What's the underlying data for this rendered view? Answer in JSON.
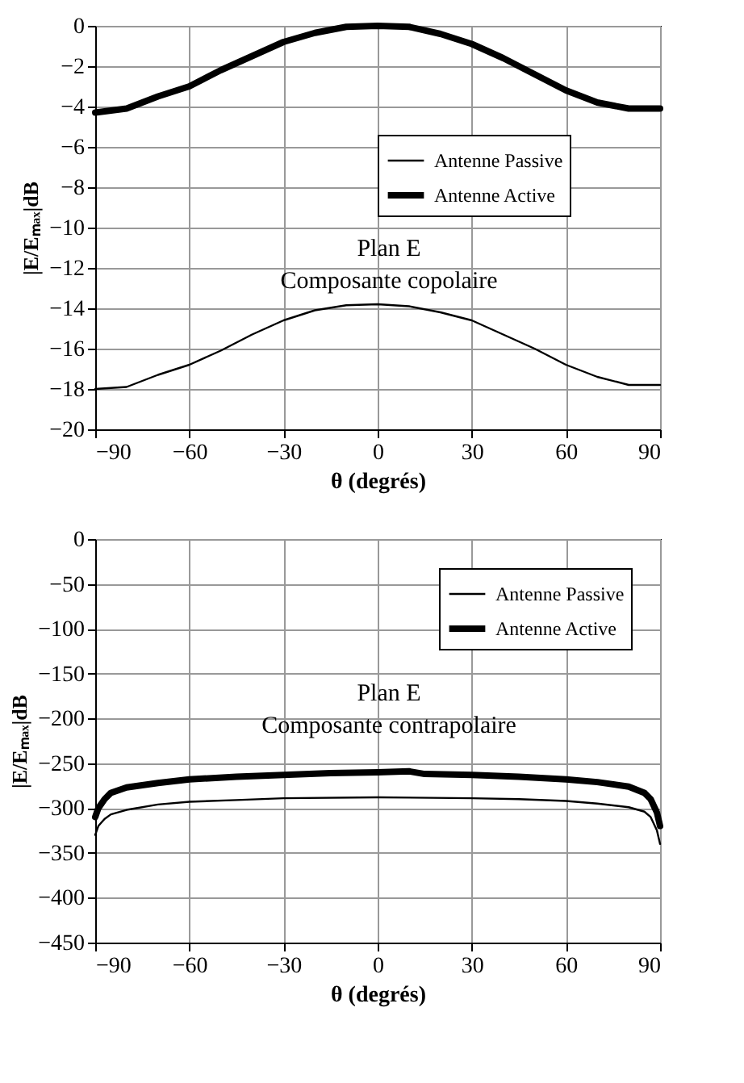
{
  "chart_data": [
    {
      "type": "line",
      "xlabel": "θ (degrés)",
      "ylabel": "|E/Eₘₐₓ|dB",
      "annotations": [
        "Plan E",
        "Composante copolaire"
      ],
      "xlim": [
        -90,
        90
      ],
      "xticks": [
        -90,
        -60,
        -30,
        0,
        30,
        60,
        90
      ],
      "ylim": [
        -20,
        0
      ],
      "yticks": [
        -20,
        -18,
        -16,
        -14,
        -12,
        -10,
        -8,
        -6,
        -4,
        -2,
        0
      ],
      "grid": true,
      "legend": "right",
      "marker": "none",
      "line_style": "solid",
      "x": [
        -90,
        -80,
        -70,
        -60,
        -50,
        -40,
        -30,
        -20,
        -10,
        0,
        10,
        20,
        30,
        40,
        50,
        60,
        70,
        80,
        90
      ],
      "series": [
        {
          "name": "Antenne Passive",
          "color": "#000000",
          "values": [
            -18,
            -17.9,
            -17.3,
            -16.8,
            -16.1,
            -15.3,
            -14.6,
            -14.1,
            -13.85,
            -13.8,
            -13.9,
            -14.2,
            -14.6,
            -15.3,
            -16.0,
            -16.8,
            -17.4,
            -17.8,
            -17.8
          ]
        },
        {
          "name": "Antenne Active",
          "color": "#000000",
          "values": [
            -4.3,
            -4.1,
            -3.5,
            -3.0,
            -2.2,
            -1.5,
            -0.8,
            -0.35,
            -0.05,
            0,
            -0.05,
            -0.4,
            -0.9,
            -1.6,
            -2.4,
            -3.2,
            -3.8,
            -4.1,
            -4.1
          ]
        }
      ]
    },
    {
      "type": "line",
      "xlabel": "θ (degrés)",
      "ylabel": "|E/Eₘₐₓ|dB",
      "annotations": [
        "Plan E",
        "Composante contrapolaire"
      ],
      "xlim": [
        -90,
        90
      ],
      "xticks": [
        -90,
        -60,
        -30,
        0,
        30,
        60,
        90
      ],
      "ylim": [
        -450,
        0
      ],
      "yticks": [
        -450,
        -400,
        -350,
        -300,
        -250,
        -200,
        -150,
        -100,
        -50,
        0
      ],
      "grid": true,
      "legend": "top right",
      "marker": "none",
      "line_style": "solid",
      "series": [
        {
          "name": "Antenne Passive",
          "color": "#000000",
          "x": [
            -90,
            -89,
            -87,
            -85,
            -80,
            -70,
            -60,
            -45,
            -30,
            0,
            30,
            45,
            60,
            70,
            80,
            85,
            87,
            89,
            90
          ],
          "values": [
            -330,
            -320,
            -312,
            -307,
            -302,
            -296,
            -293,
            -291,
            -289,
            -288,
            -289,
            -290,
            -292,
            -295,
            -299,
            -304,
            -310,
            -325,
            -340
          ]
        },
        {
          "name": "Antenne Active",
          "color": "#000000",
          "x": [
            -90,
            -89,
            -87,
            -85,
            -80,
            -70,
            -60,
            -45,
            -30,
            -15,
            0,
            10,
            15,
            30,
            45,
            60,
            70,
            80,
            85,
            87,
            89,
            90
          ],
          "values": [
            -310,
            -300,
            -290,
            -283,
            -277,
            -272,
            -268,
            -265,
            -263,
            -261,
            -260,
            -259,
            -262,
            -263,
            -265,
            -268,
            -271,
            -276,
            -283,
            -290,
            -305,
            -320
          ]
        }
      ]
    }
  ]
}
